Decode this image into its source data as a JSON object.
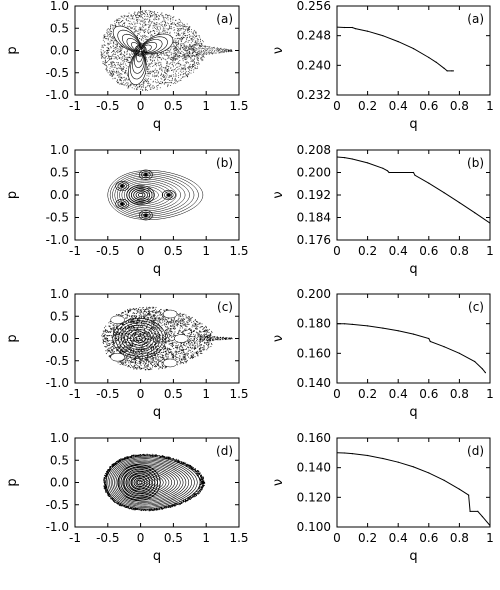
{
  "chart_data": [
    {
      "type": "scatter",
      "panel": "(a)",
      "xlabel": "q",
      "ylabel": "p",
      "xlim": [
        -1,
        1.5
      ],
      "ylim": [
        -1,
        1
      ],
      "xticks": [
        "-1",
        "-0.5",
        "0",
        "0.5",
        "1",
        "1.5"
      ],
      "yticks": [
        "1.0",
        "0.5",
        "0.0",
        "-0.5",
        "-1.0"
      ],
      "pattern": "chaotic",
      "grid": false
    },
    {
      "type": "line",
      "panel": "(a)",
      "xlabel": "q",
      "ylabel": "ν",
      "xlim": [
        0,
        1
      ],
      "ylim": [
        0.232,
        0.256
      ],
      "xticks": [
        "0",
        "0.2",
        "0.4",
        "0.6",
        "0.8",
        "1"
      ],
      "yticks": [
        "0.256",
        "0.248",
        "0.240",
        "0.232"
      ],
      "series": [
        {
          "x": [
            0.0,
            0.05,
            0.1,
            0.12,
            0.2,
            0.3,
            0.4,
            0.5,
            0.6,
            0.65,
            0.7,
            0.72,
            0.75,
            0.76
          ],
          "y": [
            0.2503,
            0.2502,
            0.2502,
            0.2499,
            0.2492,
            0.248,
            0.2464,
            0.2445,
            0.2421,
            0.2408,
            0.2392,
            0.2385,
            0.2385,
            0.2385
          ]
        }
      ],
      "grid": false
    },
    {
      "type": "scatter",
      "panel": "(b)",
      "xlabel": "q",
      "ylabel": "p",
      "xlim": [
        -1,
        1.5
      ],
      "ylim": [
        -1,
        1
      ],
      "xticks": [
        "-1",
        "-0.5",
        "0",
        "0.5",
        "1",
        "1.5"
      ],
      "yticks": [
        "1.0",
        "0.5",
        "0.0",
        "-0.5",
        "-1.0"
      ],
      "pattern": "regular",
      "grid": false
    },
    {
      "type": "line",
      "panel": "(b)",
      "xlabel": "q",
      "ylabel": "ν",
      "xlim": [
        0,
        1
      ],
      "ylim": [
        0.176,
        0.208
      ],
      "xticks": [
        "0",
        "0.2",
        "0.4",
        "0.6",
        "0.8",
        "1"
      ],
      "yticks": [
        "0.208",
        "0.200",
        "0.192",
        "0.184",
        "0.176"
      ],
      "series": [
        {
          "x": [
            0.0,
            0.05,
            0.1,
            0.2,
            0.3,
            0.33,
            0.34,
            0.5,
            0.51,
            0.6,
            0.7,
            0.8,
            0.9,
            1.0
          ],
          "y": [
            0.2055,
            0.2053,
            0.2048,
            0.2034,
            0.2015,
            0.2006,
            0.2,
            0.2,
            0.199,
            0.1962,
            0.1928,
            0.1893,
            0.1857,
            0.182
          ]
        }
      ],
      "grid": false
    },
    {
      "type": "scatter",
      "panel": "(c)",
      "xlabel": "q",
      "ylabel": "p",
      "xlim": [
        -1,
        1.5
      ],
      "ylim": [
        -1,
        1
      ],
      "xticks": [
        "-1",
        "-0.5",
        "0",
        "0.5",
        "1",
        "1.5"
      ],
      "yticks": [
        "1.0",
        "0.5",
        "0.0",
        "-0.5",
        "-1.0"
      ],
      "pattern": "mixed",
      "grid": false
    },
    {
      "type": "line",
      "panel": "(c)",
      "xlabel": "q",
      "ylabel": "ν",
      "xlim": [
        0,
        1
      ],
      "ylim": [
        0.14,
        0.2
      ],
      "xticks": [
        "0",
        "0.2",
        "0.4",
        "0.6",
        "0.8",
        "1"
      ],
      "yticks": [
        "0.200",
        "0.180",
        "0.160",
        "0.140"
      ],
      "series": [
        {
          "x": [
            0.0,
            0.05,
            0.1,
            0.2,
            0.3,
            0.4,
            0.5,
            0.6,
            0.61,
            0.7,
            0.8,
            0.9,
            0.95,
            0.97
          ],
          "y": [
            0.18,
            0.1799,
            0.1795,
            0.1785,
            0.177,
            0.1752,
            0.173,
            0.17,
            0.168,
            0.1645,
            0.16,
            0.1545,
            0.1495,
            0.147
          ]
        }
      ],
      "grid": false
    },
    {
      "type": "scatter",
      "panel": "(d)",
      "xlabel": "q",
      "ylabel": "p",
      "xlim": [
        -1,
        1.5
      ],
      "ylim": [
        -1,
        1
      ],
      "xticks": [
        "-1",
        "-0.5",
        "0",
        "0.5",
        "1",
        "1.5"
      ],
      "yticks": [
        "1.0",
        "0.5",
        "0.0",
        "-0.5",
        "-1.0"
      ],
      "pattern": "regular-dense",
      "grid": false
    },
    {
      "type": "line",
      "panel": "(d)",
      "xlabel": "q",
      "ylabel": "ν",
      "xlim": [
        0,
        1
      ],
      "ylim": [
        0.1,
        0.16
      ],
      "xticks": [
        "0",
        "0.2",
        "0.4",
        "0.6",
        "0.8",
        "1"
      ],
      "yticks": [
        "0.160",
        "0.140",
        "0.120",
        "0.100"
      ],
      "series": [
        {
          "x": [
            0.0,
            0.05,
            0.1,
            0.2,
            0.3,
            0.4,
            0.5,
            0.6,
            0.7,
            0.8,
            0.86,
            0.87,
            0.92,
            0.95,
            1.0
          ],
          "y": [
            0.15,
            0.1499,
            0.1495,
            0.1482,
            0.1462,
            0.1437,
            0.1405,
            0.1365,
            0.1315,
            0.1255,
            0.1215,
            0.1105,
            0.1105,
            0.107,
            0.101
          ]
        }
      ],
      "grid": false
    }
  ]
}
